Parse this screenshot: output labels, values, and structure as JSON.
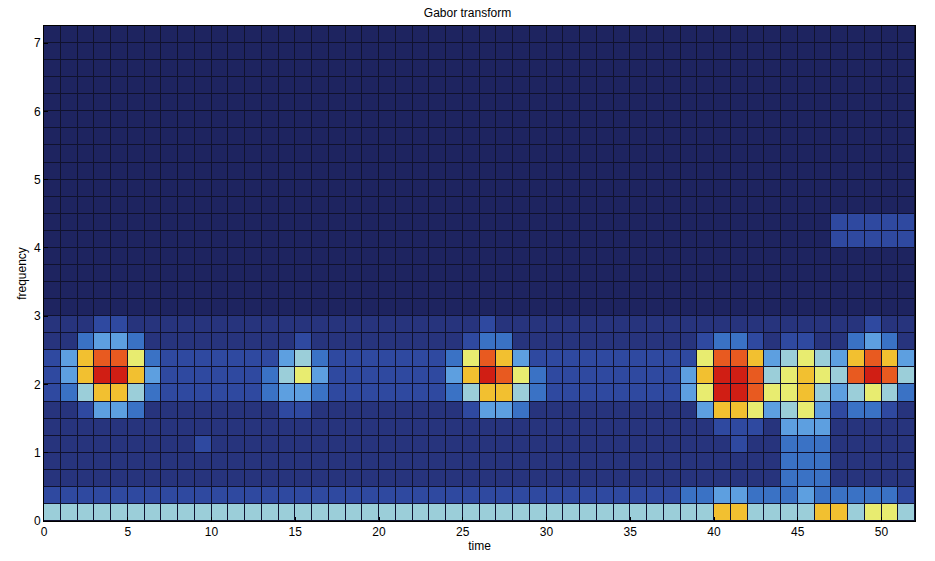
{
  "chart_data": {
    "type": "heatmap",
    "title": "Gabor transform",
    "x_label": "time",
    "y_label": "frequency",
    "xlim": [
      0,
      52
    ],
    "ylim": [
      0,
      7.25
    ],
    "xticks": [
      0,
      5,
      10,
      15,
      20,
      25,
      30,
      35,
      40,
      45,
      50
    ],
    "yticks": [
      0,
      1,
      2,
      3,
      4,
      5,
      6,
      7
    ],
    "grid": false,
    "zlim": [
      0,
      10
    ],
    "x": [
      0.5,
      1.5,
      2.5,
      3.5,
      4.5,
      5.5,
      6.5,
      7.5,
      8.5,
      9.5,
      10.5,
      11.5,
      12.5,
      13.5,
      14.5,
      15.5,
      16.5,
      17.5,
      18.5,
      19.5,
      20.5,
      21.5,
      22.5,
      23.5,
      24.5,
      25.5,
      26.5,
      27.5,
      28.5,
      29.5,
      30.5,
      31.5,
      32.5,
      33.5,
      34.5,
      35.5,
      36.5,
      37.5,
      38.5,
      39.5,
      40.5,
      41.5,
      42.5,
      43.5,
      44.5,
      45.5,
      46.5,
      47.5,
      48.5,
      49.5,
      50.5,
      51.5
    ],
    "y": [
      0.125,
      0.375,
      0.625,
      0.875,
      1.125,
      1.375,
      1.625,
      1.875,
      2.125,
      2.375,
      2.625,
      2.875,
      3.125,
      3.375,
      3.625,
      3.875,
      4.125,
      4.375,
      4.625,
      4.875,
      5.125,
      5.375,
      5.625,
      5.875,
      6.125,
      6.375,
      6.625,
      6.875,
      7.125
    ],
    "z": [
      [
        6,
        6,
        6,
        6,
        6,
        6,
        6,
        6,
        6,
        6,
        6,
        6,
        6,
        6,
        6,
        6,
        6,
        6,
        6,
        6,
        6,
        6,
        6,
        6,
        6,
        6,
        6,
        6,
        6,
        6,
        6,
        6,
        6,
        6,
        6,
        6,
        6,
        6,
        6,
        6,
        8,
        8,
        6,
        6,
        6,
        6,
        8,
        8,
        6,
        7,
        7,
        6
      ],
      [
        3,
        3,
        3,
        3,
        3,
        3,
        3,
        3,
        3,
        3,
        3,
        3,
        3,
        3,
        3,
        3,
        3,
        3,
        3,
        3,
        3,
        3,
        3,
        3,
        3,
        3,
        3,
        3,
        3,
        3,
        3,
        3,
        3,
        3,
        3,
        3,
        3,
        3,
        4,
        4,
        5,
        5,
        4,
        4,
        4,
        5,
        4,
        4,
        4,
        4,
        4,
        3
      ],
      [
        2,
        2,
        2,
        2,
        2,
        2,
        2,
        2,
        2,
        2,
        2,
        2,
        2,
        2,
        2,
        2,
        2,
        2,
        2,
        2,
        2,
        2,
        2,
        2,
        2,
        2,
        2,
        2,
        2,
        2,
        2,
        2,
        2,
        2,
        2,
        2,
        2,
        2,
        2,
        2,
        2,
        2,
        2,
        2,
        4,
        4,
        4,
        2,
        2,
        2,
        2,
        2
      ],
      [
        2,
        2,
        2,
        2,
        2,
        2,
        2,
        2,
        2,
        2,
        2,
        2,
        2,
        2,
        2,
        2,
        2,
        2,
        2,
        2,
        2,
        2,
        2,
        2,
        2,
        2,
        2,
        2,
        2,
        2,
        2,
        2,
        2,
        2,
        2,
        2,
        2,
        2,
        2,
        2,
        2,
        2,
        2,
        2,
        4,
        4,
        4,
        2,
        2,
        2,
        2,
        2
      ],
      [
        2,
        2,
        2,
        2,
        2,
        2,
        2,
        2,
        2,
        3,
        2,
        2,
        2,
        2,
        2,
        2,
        2,
        2,
        2,
        2,
        2,
        2,
        2,
        2,
        2,
        2,
        2,
        2,
        2,
        2,
        2,
        2,
        2,
        2,
        2,
        2,
        2,
        2,
        2,
        2,
        2,
        3,
        2,
        2,
        4,
        4,
        4,
        2,
        2,
        2,
        2,
        2
      ],
      [
        2,
        2,
        2,
        2,
        2,
        2,
        2,
        2,
        2,
        2,
        2,
        2,
        2,
        2,
        2,
        2,
        2,
        2,
        2,
        2,
        2,
        2,
        2,
        2,
        2,
        2,
        2,
        2,
        2,
        2,
        2,
        2,
        2,
        2,
        2,
        2,
        2,
        2,
        2,
        2,
        3,
        3,
        3,
        2,
        5,
        5,
        5,
        2,
        2,
        2,
        2,
        2
      ],
      [
        2,
        2,
        3,
        5,
        5,
        4,
        2,
        2,
        2,
        2,
        2,
        2,
        2,
        2,
        3,
        3,
        2,
        2,
        2,
        2,
        2,
        2,
        2,
        2,
        2,
        3,
        5,
        5,
        4,
        2,
        2,
        2,
        2,
        2,
        2,
        2,
        2,
        2,
        2,
        5,
        8,
        8,
        7,
        5,
        6,
        7,
        5,
        3,
        4,
        4,
        3,
        2
      ],
      [
        3,
        4,
        6,
        8,
        8,
        6,
        4,
        3,
        3,
        3,
        3,
        3,
        3,
        4,
        5,
        5,
        4,
        3,
        3,
        3,
        3,
        3,
        3,
        3,
        4,
        6,
        8,
        8,
        6,
        4,
        3,
        3,
        3,
        3,
        3,
        3,
        3,
        3,
        5,
        7,
        10,
        10,
        9,
        7,
        7,
        8,
        6,
        5,
        6,
        7,
        6,
        4
      ],
      [
        3,
        5,
        8,
        10,
        10,
        8,
        5,
        3,
        3,
        3,
        3,
        3,
        3,
        4,
        6,
        7,
        5,
        3,
        3,
        3,
        3,
        3,
        3,
        3,
        5,
        8,
        10,
        9,
        7,
        4,
        3,
        3,
        3,
        3,
        3,
        3,
        3,
        3,
        5,
        8,
        10,
        10,
        9,
        6,
        7,
        8,
        7,
        6,
        9,
        10,
        9,
        6
      ],
      [
        3,
        5,
        8,
        9,
        9,
        7,
        4,
        3,
        3,
        3,
        3,
        3,
        3,
        3,
        5,
        6,
        4,
        3,
        3,
        3,
        3,
        3,
        3,
        3,
        4,
        7,
        9,
        8,
        5,
        3,
        3,
        3,
        3,
        3,
        3,
        3,
        3,
        3,
        3,
        7,
        9,
        9,
        8,
        5,
        6,
        7,
        6,
        5,
        8,
        9,
        8,
        5
      ],
      [
        2,
        2,
        4,
        5,
        5,
        4,
        2,
        2,
        2,
        2,
        2,
        2,
        2,
        2,
        2,
        3,
        2,
        2,
        2,
        2,
        2,
        2,
        2,
        2,
        2,
        3,
        4,
        4,
        2,
        2,
        2,
        2,
        2,
        2,
        2,
        2,
        2,
        2,
        2,
        3,
        4,
        4,
        3,
        2,
        3,
        3,
        2,
        2,
        4,
        5,
        4,
        2
      ],
      [
        2,
        2,
        2,
        3,
        3,
        2,
        2,
        2,
        2,
        2,
        2,
        2,
        2,
        2,
        2,
        2,
        2,
        2,
        2,
        2,
        2,
        2,
        2,
        2,
        2,
        2,
        3,
        2,
        2,
        2,
        2,
        2,
        2,
        2,
        2,
        2,
        2,
        2,
        2,
        2,
        2,
        2,
        2,
        2,
        2,
        2,
        2,
        2,
        2,
        3,
        2,
        2
      ],
      [
        1,
        1,
        1,
        1,
        1,
        1,
        1,
        1,
        1,
        1,
        1,
        1,
        1,
        1,
        1,
        1,
        1,
        1,
        1,
        1,
        1,
        1,
        1,
        1,
        1,
        1,
        1,
        1,
        1,
        1,
        1,
        1,
        1,
        1,
        1,
        1,
        1,
        1,
        1,
        1,
        1,
        1,
        1,
        1,
        1,
        1,
        1,
        1,
        1,
        1,
        1,
        1
      ],
      [
        1,
        1,
        1,
        1,
        1,
        1,
        1,
        1,
        1,
        1,
        1,
        1,
        1,
        1,
        1,
        1,
        1,
        1,
        1,
        1,
        1,
        1,
        1,
        1,
        1,
        1,
        1,
        1,
        1,
        1,
        1,
        1,
        1,
        1,
        1,
        1,
        1,
        1,
        1,
        1,
        1,
        1,
        1,
        1,
        1,
        1,
        1,
        1,
        1,
        1,
        1,
        1
      ],
      [
        1,
        1,
        1,
        1,
        1,
        1,
        1,
        1,
        1,
        1,
        1,
        1,
        1,
        1,
        1,
        1,
        1,
        1,
        1,
        1,
        1,
        1,
        1,
        1,
        1,
        1,
        1,
        1,
        1,
        1,
        1,
        1,
        1,
        1,
        1,
        1,
        1,
        1,
        1,
        1,
        1,
        1,
        1,
        1,
        1,
        1,
        1,
        1,
        1,
        1,
        1,
        1
      ],
      [
        1,
        1,
        1,
        1,
        1,
        1,
        1,
        1,
        1,
        1,
        1,
        1,
        1,
        1,
        1,
        1,
        1,
        1,
        1,
        1,
        1,
        1,
        1,
        1,
        1,
        1,
        1,
        1,
        1,
        1,
        1,
        1,
        1,
        1,
        1,
        1,
        1,
        1,
        1,
        1,
        1,
        1,
        1,
        1,
        1,
        1,
        1,
        1,
        1,
        1,
        1,
        1
      ],
      [
        1,
        1,
        1,
        1,
        1,
        1,
        1,
        1,
        1,
        1,
        1,
        1,
        1,
        1,
        1,
        1,
        1,
        1,
        1,
        1,
        1,
        1,
        1,
        1,
        1,
        1,
        1,
        1,
        1,
        1,
        1,
        1,
        1,
        1,
        1,
        1,
        1,
        1,
        1,
        1,
        1,
        1,
        1,
        1,
        1,
        1,
        1,
        3,
        3,
        3,
        3,
        3
      ],
      [
        1,
        1,
        1,
        1,
        1,
        1,
        1,
        1,
        1,
        1,
        1,
        1,
        1,
        1,
        1,
        1,
        1,
        1,
        1,
        1,
        1,
        1,
        1,
        1,
        1,
        1,
        1,
        1,
        1,
        1,
        1,
        1,
        1,
        1,
        1,
        1,
        1,
        1,
        1,
        1,
        1,
        1,
        1,
        1,
        1,
        1,
        1,
        3,
        3,
        3,
        3,
        3
      ],
      [
        1,
        1,
        1,
        1,
        1,
        1,
        1,
        1,
        1,
        1,
        1,
        1,
        1,
        1,
        1,
        1,
        1,
        1,
        1,
        1,
        1,
        1,
        1,
        1,
        1,
        1,
        1,
        1,
        1,
        1,
        1,
        1,
        1,
        1,
        1,
        1,
        1,
        1,
        1,
        1,
        1,
        1,
        1,
        1,
        1,
        1,
        1,
        1,
        1,
        1,
        1,
        1
      ],
      [
        1,
        1,
        1,
        1,
        1,
        1,
        1,
        1,
        1,
        1,
        1,
        1,
        1,
        1,
        1,
        1,
        1,
        1,
        1,
        1,
        1,
        1,
        1,
        1,
        1,
        1,
        1,
        1,
        1,
        1,
        1,
        1,
        1,
        1,
        1,
        1,
        1,
        1,
        1,
        1,
        1,
        1,
        1,
        1,
        1,
        1,
        1,
        1,
        1,
        1,
        1,
        1
      ],
      [
        1,
        1,
        1,
        1,
        1,
        1,
        1,
        1,
        1,
        1,
        1,
        1,
        1,
        1,
        1,
        1,
        1,
        1,
        1,
        1,
        1,
        1,
        1,
        1,
        1,
        1,
        1,
        1,
        1,
        1,
        1,
        1,
        1,
        1,
        1,
        1,
        1,
        1,
        1,
        1,
        1,
        1,
        1,
        1,
        1,
        1,
        1,
        1,
        1,
        1,
        1,
        1
      ],
      [
        1,
        1,
        1,
        1,
        1,
        1,
        1,
        1,
        1,
        1,
        1,
        1,
        1,
        1,
        1,
        1,
        1,
        1,
        1,
        1,
        1,
        1,
        1,
        1,
        1,
        1,
        1,
        1,
        1,
        1,
        1,
        1,
        1,
        1,
        1,
        1,
        1,
        1,
        1,
        1,
        1,
        1,
        1,
        1,
        1,
        1,
        1,
        1,
        1,
        1,
        1,
        1
      ],
      [
        1,
        1,
        1,
        1,
        1,
        1,
        1,
        1,
        1,
        1,
        1,
        1,
        1,
        1,
        1,
        1,
        1,
        1,
        1,
        1,
        1,
        1,
        1,
        1,
        1,
        1,
        1,
        1,
        1,
        1,
        1,
        1,
        1,
        1,
        1,
        1,
        1,
        1,
        1,
        1,
        1,
        1,
        1,
        1,
        1,
        1,
        1,
        1,
        1,
        1,
        1,
        1
      ],
      [
        1,
        1,
        1,
        1,
        1,
        1,
        1,
        1,
        1,
        1,
        1,
        1,
        1,
        1,
        1,
        1,
        1,
        1,
        1,
        1,
        1,
        1,
        1,
        1,
        1,
        1,
        1,
        1,
        1,
        1,
        1,
        1,
        1,
        1,
        1,
        1,
        1,
        1,
        1,
        1,
        1,
        1,
        1,
        1,
        1,
        1,
        1,
        1,
        1,
        1,
        1,
        1
      ],
      [
        1,
        1,
        1,
        1,
        1,
        1,
        1,
        1,
        1,
        1,
        1,
        1,
        1,
        1,
        1,
        1,
        1,
        1,
        1,
        1,
        1,
        1,
        1,
        1,
        1,
        1,
        1,
        1,
        1,
        1,
        1,
        1,
        1,
        1,
        1,
        1,
        1,
        1,
        1,
        1,
        1,
        1,
        1,
        1,
        1,
        1,
        1,
        1,
        1,
        1,
        1,
        1
      ],
      [
        1,
        1,
        1,
        1,
        1,
        1,
        1,
        1,
        1,
        1,
        1,
        1,
        1,
        1,
        1,
        1,
        1,
        1,
        1,
        1,
        1,
        1,
        1,
        1,
        1,
        1,
        1,
        1,
        1,
        1,
        1,
        1,
        1,
        1,
        1,
        1,
        1,
        1,
        1,
        1,
        1,
        1,
        1,
        1,
        1,
        1,
        1,
        1,
        1,
        1,
        1,
        1
      ],
      [
        1,
        1,
        1,
        1,
        1,
        1,
        1,
        1,
        1,
        1,
        1,
        1,
        1,
        1,
        1,
        1,
        1,
        1,
        1,
        1,
        1,
        1,
        1,
        1,
        1,
        1,
        1,
        1,
        1,
        1,
        1,
        1,
        1,
        1,
        1,
        1,
        1,
        1,
        1,
        1,
        1,
        1,
        1,
        1,
        1,
        1,
        1,
        1,
        1,
        1,
        1,
        1
      ],
      [
        1,
        1,
        1,
        1,
        1,
        1,
        1,
        1,
        1,
        1,
        1,
        1,
        1,
        1,
        1,
        1,
        1,
        1,
        1,
        1,
        1,
        1,
        1,
        1,
        1,
        1,
        1,
        1,
        1,
        1,
        1,
        1,
        1,
        1,
        1,
        1,
        1,
        1,
        1,
        1,
        1,
        1,
        1,
        1,
        1,
        1,
        1,
        1,
        1,
        1,
        1,
        1
      ],
      [
        1,
        1,
        1,
        1,
        1,
        1,
        1,
        1,
        1,
        1,
        1,
        1,
        1,
        1,
        1,
        1,
        1,
        1,
        1,
        1,
        1,
        1,
        1,
        1,
        1,
        1,
        1,
        1,
        1,
        1,
        1,
        1,
        1,
        1,
        1,
        1,
        1,
        1,
        1,
        1,
        1,
        1,
        1,
        1,
        1,
        1,
        1,
        1,
        1,
        1,
        1,
        1
      ]
    ]
  }
}
